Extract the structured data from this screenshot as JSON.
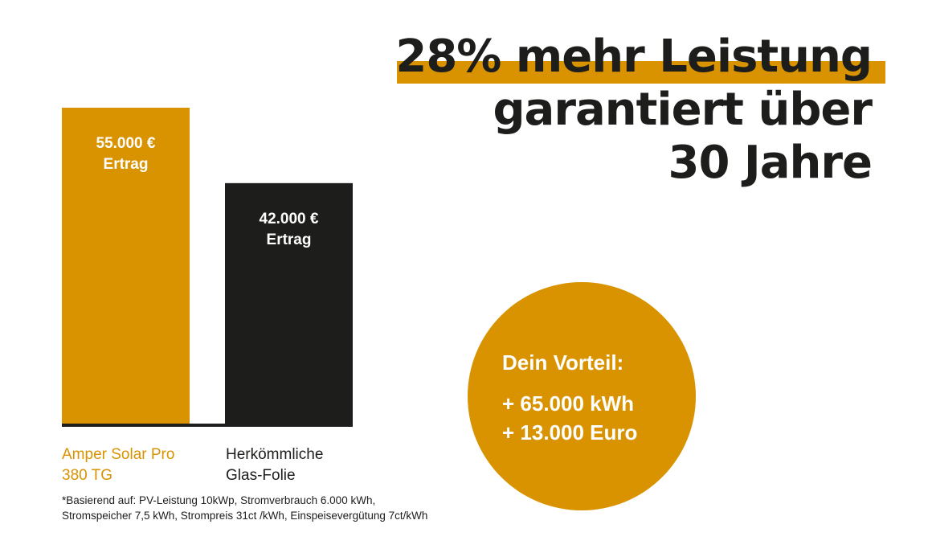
{
  "headline": {
    "lines": [
      "28% mehr Leistung",
      "garantiert über",
      "30 Jahre"
    ]
  },
  "colors": {
    "accent": "#d99300",
    "dark": "#1d1d1b",
    "text_on_bar": "#ffffff"
  },
  "chart_data": {
    "type": "bar",
    "categories": [
      [
        "Amper Solar Pro",
        "380 TG"
      ],
      [
        "Herkömmliche",
        "Glas-Folie"
      ]
    ],
    "values": [
      55000,
      42000
    ],
    "data_labels": [
      [
        "55.000 €",
        "Ertrag"
      ],
      [
        "42.000 €",
        "Ertrag"
      ]
    ],
    "bar_colors": [
      "#d99300",
      "#1d1d1b"
    ],
    "category_label_colors": [
      "#d99300",
      "#1d1d1b"
    ],
    "ylim": [
      0,
      55000
    ],
    "grid": false,
    "title": "",
    "xlabel": "",
    "ylabel": ""
  },
  "advantage": {
    "title": "Dein Vorteil:",
    "lines": [
      "+ 65.000 kWh",
      "+ 13.000 Euro"
    ]
  },
  "footnote": {
    "lines": [
      "*Basierend auf: PV-Leistung 10kWp, Stromverbrauch 6.000 kWh,",
      "Stromspeicher 7,5 kWh, Strompreis 31ct /kWh, Einspeisevergütung 7ct/kWh"
    ]
  }
}
